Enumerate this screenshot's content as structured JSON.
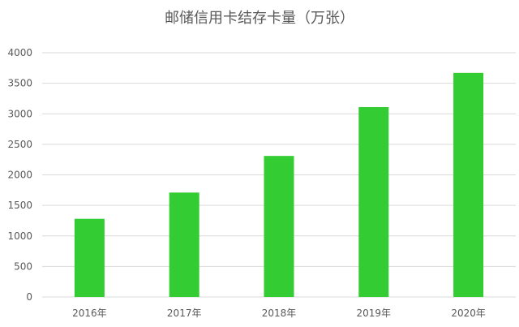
{
  "chart_data": {
    "type": "bar",
    "title": "邮储信用卡结存卡量（万张）",
    "categories": [
      "2016年",
      "2017年",
      "2018年",
      "2019年",
      "2020年"
    ],
    "values": [
      1280,
      1710,
      2310,
      3110,
      3670
    ],
    "ylim": [
      0,
      4000
    ],
    "yticks": [
      0,
      500,
      1000,
      1500,
      2000,
      2500,
      3000,
      3500,
      4000
    ],
    "grid": true,
    "bar_color": "#33cc33",
    "xlabel": "",
    "ylabel": ""
  }
}
